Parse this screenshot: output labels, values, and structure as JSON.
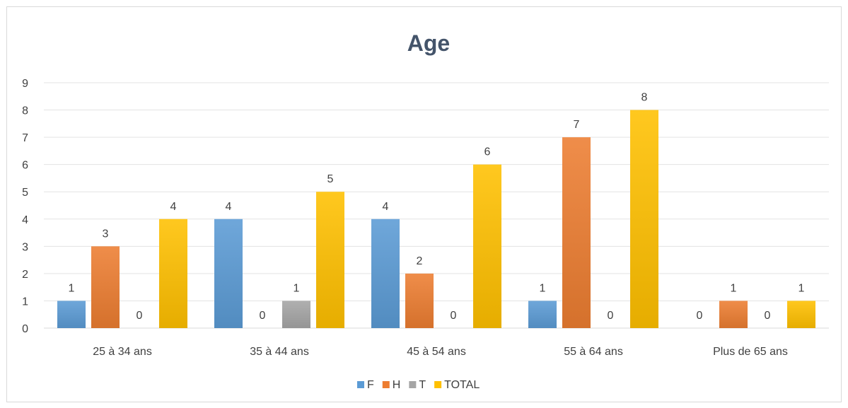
{
  "chart_data": {
    "type": "bar",
    "title": "Age",
    "categories": [
      "25 à 34 ans",
      "35 à 44 ans",
      "45 à 54 ans",
      "55 à 64 ans",
      "Plus de 65 ans"
    ],
    "series": [
      {
        "name": "F",
        "values": [
          1,
          4,
          4,
          1,
          0
        ],
        "color": "#5b9bd5"
      },
      {
        "name": "H",
        "values": [
          3,
          0,
          2,
          7,
          1
        ],
        "color": "#ed7d31"
      },
      {
        "name": "T",
        "values": [
          0,
          1,
          0,
          0,
          0
        ],
        "color": "#a5a5a5"
      },
      {
        "name": "TOTAL",
        "values": [
          4,
          5,
          6,
          8,
          1
        ],
        "color": "#ffc000"
      }
    ],
    "ylim": [
      0,
      9
    ],
    "yticks": [
      "0",
      "1",
      "2",
      "3",
      "4",
      "5",
      "6",
      "7",
      "8",
      "9"
    ],
    "xlabel": "",
    "ylabel": "",
    "grid": true,
    "legend": "bottom"
  }
}
